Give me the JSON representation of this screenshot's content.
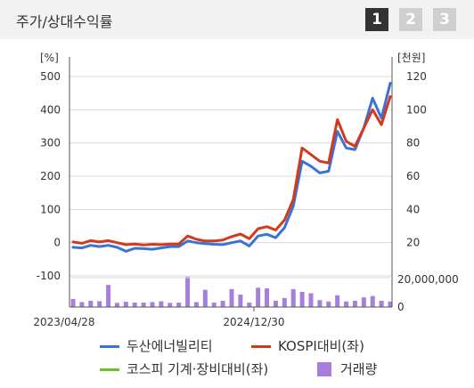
{
  "header": {
    "title": "주가/상대수익률",
    "tabs": [
      {
        "label": "1",
        "active": true
      },
      {
        "label": "2",
        "active": false
      },
      {
        "label": "3",
        "active": false
      }
    ]
  },
  "chart_data": {
    "type": "line",
    "left_axis": {
      "unit_label": "[%]",
      "ticks": [
        "500",
        "400",
        "300",
        "200",
        "100",
        "0",
        "-100"
      ],
      "range": [
        -100,
        500
      ]
    },
    "right_axis": {
      "unit_label": "[천원]",
      "ticks": [
        "120",
        "100",
        "80",
        "60",
        "40",
        "20"
      ],
      "range": [
        0,
        120
      ]
    },
    "volume_axis": {
      "ticks": [
        "20,000,000",
        "0"
      ],
      "range": [
        0,
        20000000
      ]
    },
    "x_tick_labels": [
      "2023/04/28",
      "2024/12/30"
    ],
    "series": [
      {
        "name": "두산에너빌리티",
        "color": "#3a72d6",
        "axis": "left",
        "values": [
          -14,
          -16,
          -8,
          -12,
          -8,
          -14,
          -26,
          -17,
          -18,
          -20,
          -16,
          -12,
          -12,
          5,
          0,
          -3,
          -5,
          -6,
          0,
          5,
          -10,
          20,
          25,
          15,
          45,
          110,
          245,
          230,
          210,
          215,
          335,
          285,
          280,
          345,
          435,
          375,
          480
        ]
      },
      {
        "name": "KOSPI대비(좌)",
        "color": "#d23a1e",
        "axis": "left",
        "values": [
          2,
          -2,
          6,
          2,
          6,
          0,
          -6,
          -4,
          -7,
          -5,
          -6,
          -4,
          -4,
          20,
          10,
          5,
          5,
          8,
          18,
          26,
          12,
          42,
          48,
          38,
          68,
          130,
          285,
          265,
          245,
          240,
          370,
          305,
          290,
          345,
          400,
          355,
          440
        ]
      },
      {
        "name": "코스피 기계·장비대비(좌)",
        "color": "#6abf2e",
        "axis": "left",
        "values": []
      }
    ],
    "volume": {
      "name": "거래량",
      "color": "#a67fdc",
      "values": [
        5800000,
        3600000,
        4500000,
        4200000,
        16000000,
        3000000,
        3800000,
        3200000,
        3200000,
        3600000,
        4200000,
        3000000,
        3200000,
        22000000,
        3600000,
        12500000,
        3200000,
        4500000,
        13000000,
        9000000,
        3200000,
        14000000,
        13500000,
        4500000,
        6500000,
        13000000,
        11000000,
        10000000,
        5000000,
        4000000,
        8500000,
        4000000,
        4500000,
        7000000,
        8000000,
        4500000,
        4000000
      ]
    }
  },
  "legend": {
    "items": [
      {
        "label": "두산에너빌리티",
        "color": "#3a72d6",
        "kind": "line"
      },
      {
        "label": "KOSPI대비(좌)",
        "color": "#d23a1e",
        "kind": "line"
      },
      {
        "label": "코스피 기계·장비대비(좌)",
        "color": "#6abf2e",
        "kind": "line"
      },
      {
        "label": "거래량",
        "color": "#a67fdc",
        "kind": "box"
      }
    ]
  },
  "colors": {
    "grid": "#d9d9d9",
    "axis": "#555555"
  }
}
